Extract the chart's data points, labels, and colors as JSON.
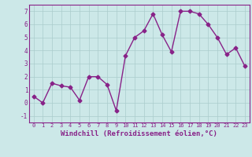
{
  "x": [
    0,
    1,
    2,
    3,
    4,
    5,
    6,
    7,
    8,
    9,
    10,
    11,
    12,
    13,
    14,
    15,
    16,
    17,
    18,
    19,
    20,
    21,
    22,
    23
  ],
  "y": [
    0.5,
    0.0,
    1.5,
    1.3,
    1.2,
    0.2,
    2.0,
    2.0,
    1.4,
    -0.6,
    3.6,
    5.0,
    5.5,
    6.8,
    5.2,
    3.9,
    7.0,
    7.0,
    6.8,
    6.0,
    5.0,
    3.7,
    4.2,
    2.8
  ],
  "line_color": "#882288",
  "marker": "D",
  "markersize": 2.5,
  "linewidth": 1.0,
  "bg_color": "#cce8e8",
  "grid_color": "#aacccc",
  "xlabel": "Windchill (Refroidissement éolien,°C)",
  "xlabel_color": "#882288",
  "xlabel_fontsize": 6.5,
  "xtick_fontsize": 5.0,
  "ytick_fontsize": 5.5,
  "xlim": [
    -0.5,
    23.5
  ],
  "ylim": [
    -1.5,
    7.5
  ],
  "yticks": [
    -1,
    0,
    1,
    2,
    3,
    4,
    5,
    6,
    7
  ],
  "xticks": [
    0,
    1,
    2,
    3,
    4,
    5,
    6,
    7,
    8,
    9,
    10,
    11,
    12,
    13,
    14,
    15,
    16,
    17,
    18,
    19,
    20,
    21,
    22,
    23
  ]
}
